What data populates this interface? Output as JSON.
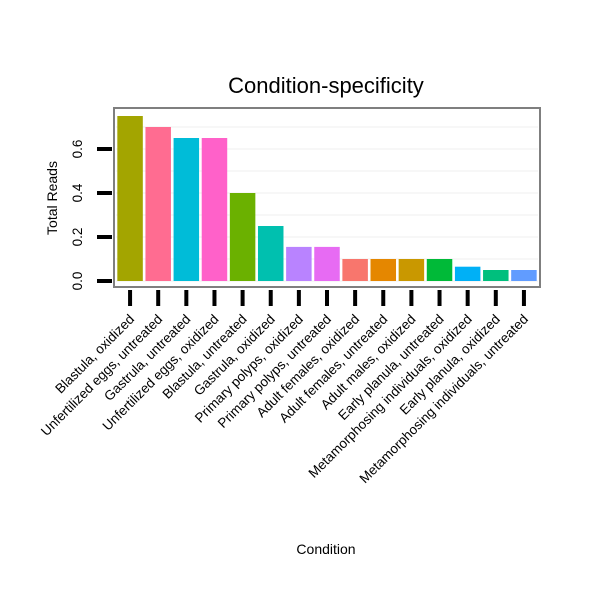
{
  "chart_data": {
    "type": "bar",
    "title": "Condition-specificity",
    "xlabel": "Condition",
    "ylabel": "Total Reads",
    "ylim": [
      0,
      0.75
    ],
    "yticks": [
      0.0,
      0.2,
      0.4,
      0.6
    ],
    "ytick_labels": [
      "0.0",
      "0.2",
      "0.4",
      "0.6"
    ],
    "grid": true,
    "legend": "none",
    "categories": [
      "Blastula, oxidized",
      "Unfertilized eggs, untreated",
      "Gastrula, untreated",
      "Unfertilized eggs, oxidized",
      "Blastula, untreated",
      "Gastrula, oxidized",
      "Primary polyps, oxidized",
      "Primary polyps, untreated",
      "Adult females, oxidized",
      "Adult females, untreated",
      "Adult males, oxidized",
      "Early planula, untreated",
      "Metamorphosing individuals, oxidized",
      "Early planula, oxidized",
      "Metamorphosing individuals, untreated"
    ],
    "values": [
      0.75,
      0.7,
      0.65,
      0.65,
      0.4,
      0.25,
      0.155,
      0.155,
      0.1,
      0.1,
      0.1,
      0.1,
      0.065,
      0.05,
      0.05
    ],
    "colors": [
      "#A3A500",
      "#FF6C91",
      "#00BCD8",
      "#FF61C9",
      "#6BB100",
      "#00C0AF",
      "#B983FF",
      "#E76BF3",
      "#F8766D",
      "#E58700",
      "#C99800",
      "#00BA38",
      "#00B0F6",
      "#00BF7D",
      "#619CFF"
    ]
  }
}
